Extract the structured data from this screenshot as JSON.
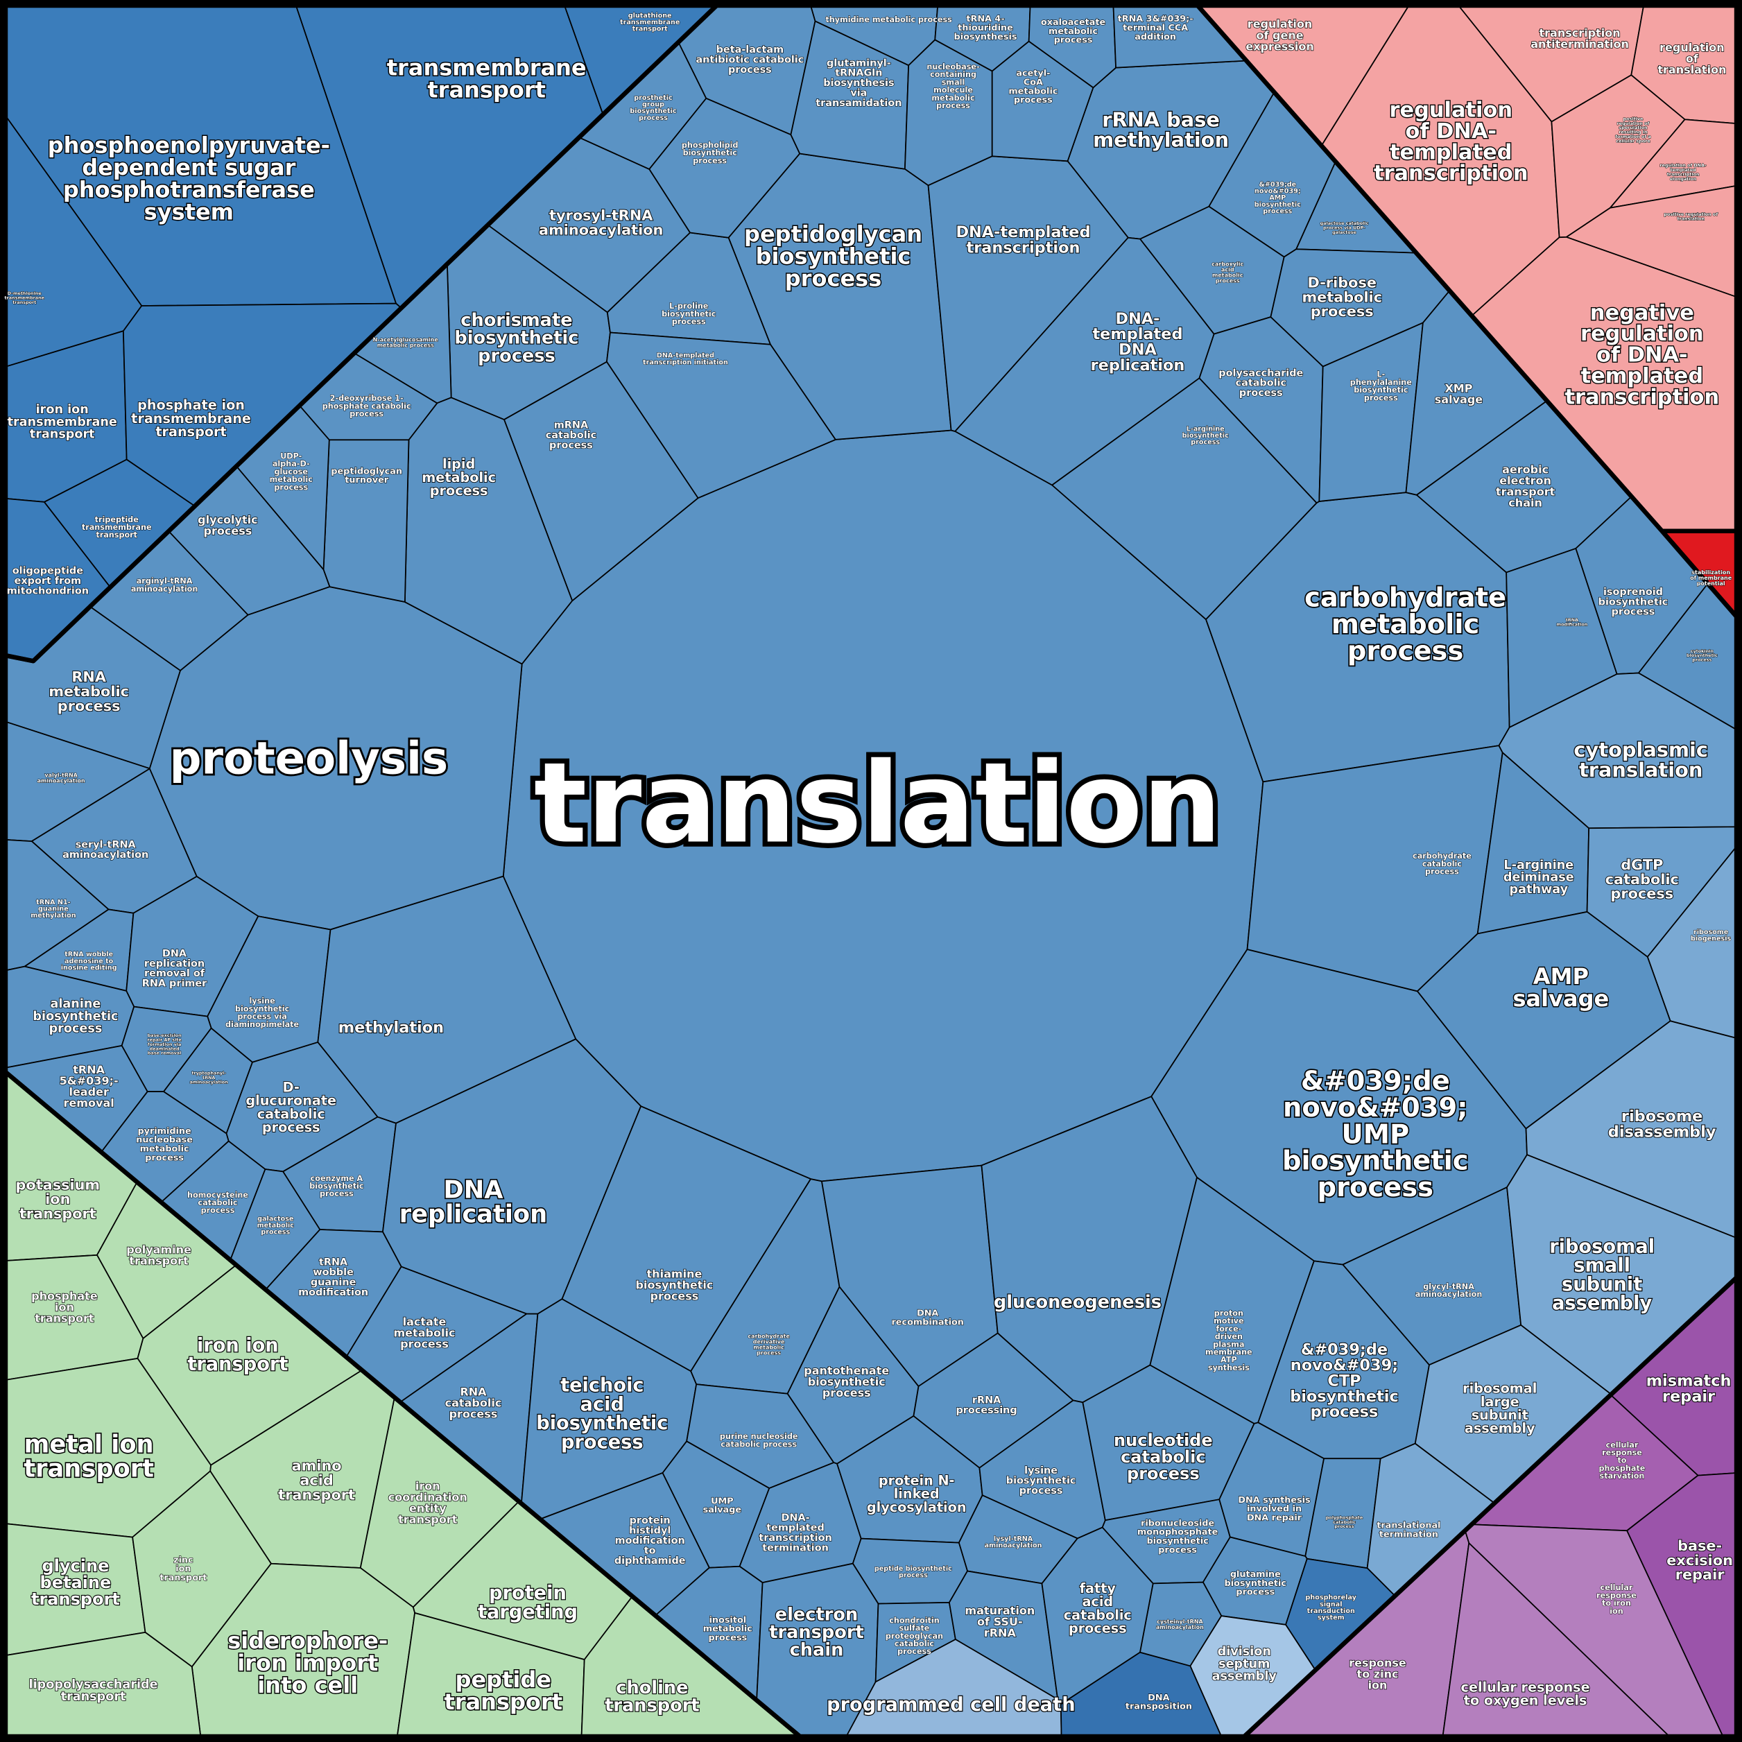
{
  "groups": [
    {
      "color": "#3b7dbb",
      "cells": [
        {
          "label": "transmembrane transport"
        },
        {
          "label": "phosphoenolpyruvate-dependent sugar phosphotransferase system"
        },
        {
          "label": "glutathione transmembrane transport"
        },
        {
          "label": "D-methionine transmembrane transport"
        },
        {
          "label": "iron ion transmembrane transport"
        },
        {
          "label": "phosphate ion transmembrane transport"
        },
        {
          "label": "tripeptide transmembrane transport"
        },
        {
          "label": "oligopeptide export from mitochondrion"
        }
      ]
    },
    {
      "color": "#5b93c4",
      "cells": [
        {
          "label": "translation"
        },
        {
          "label": "proteolysis"
        },
        {
          "label": "carbohydrate metabolic process"
        },
        {
          "label": "&#039;de novo&#039; UMP biosynthetic process"
        },
        {
          "label": "peptidoglycan biosynthetic process"
        },
        {
          "label": "rRNA base methylation"
        },
        {
          "label": "DNA-templated transcription"
        },
        {
          "label": "DNA-templated DNA replication"
        },
        {
          "label": "tyrosyl-tRNA aminoacylation"
        },
        {
          "label": "chorismate biosynthetic process"
        },
        {
          "label": "N-acetylglucosamine metabolic process"
        },
        {
          "label": "L-proline biosynthetic process"
        },
        {
          "label": "DNA-templated transcription initiation"
        },
        {
          "label": "beta-lactam antibiotic catabolic process"
        },
        {
          "label": "prosthetic group biosynthetic process"
        },
        {
          "label": "phospholipid biosynthetic process"
        },
        {
          "label": "glutaminyl-tRNAGln biosynthesis via transamidation"
        },
        {
          "label": "thymidine metabolic process"
        },
        {
          "label": "tRNA 4-thiouridine biosynthesis"
        },
        {
          "label": "oxaloacetate metabolic process"
        },
        {
          "label": "tRNA 3&#039;-terminal CCA addition"
        },
        {
          "label": "nucleobase-containing small molecule metabolic process"
        },
        {
          "label": "acetyl-CoA metabolic process"
        },
        {
          "label": "&#039;de novo&#039; AMP biosynthetic process"
        },
        {
          "label": "galactose catabolic process via UDP-galactose"
        },
        {
          "label": "carboxylic acid metabolic process"
        },
        {
          "label": "D-ribose metabolic process"
        },
        {
          "label": "polysaccharide catabolic process"
        },
        {
          "label": "L-phenylalanine biosynthetic process"
        },
        {
          "label": "XMP salvage"
        },
        {
          "label": "L-arginine biosynthetic process"
        },
        {
          "label": "mRNA catabolic process"
        },
        {
          "label": "lipid metabolic process"
        },
        {
          "label": "peptidoglycan turnover"
        },
        {
          "label": "2-deoxyribose 1-phosphate catabolic process"
        },
        {
          "label": "UDP-alpha-D-glucose metabolic process"
        },
        {
          "label": "glycolytic process"
        },
        {
          "label": "arginyl-tRNA aminoacylation"
        },
        {
          "label": "RNA metabolic process"
        },
        {
          "label": "valyl-tRNA aminoacylation"
        },
        {
          "label": "seryl-tRNA aminoacylation"
        },
        {
          "label": "tRNA N1-guanine methylation"
        },
        {
          "label": "tRNA wobble adenosine to inosine editing"
        },
        {
          "label": "DNA replication removal of RNA primer"
        },
        {
          "label": "alanine biosynthetic process"
        },
        {
          "label": "lysine biosynthetic process via diaminopimelate"
        },
        {
          "label": "methylation"
        },
        {
          "label": "base-excision repair AP site formation via deaminated base removal"
        },
        {
          "label": "tryptophanyl-tRNA aminoacylation"
        },
        {
          "label": "tRNA 5&#039;-leader removal"
        },
        {
          "label": "D-glucuronate catabolic process"
        },
        {
          "label": "pyrimidine nucleobase metabolic process"
        },
        {
          "label": "coenzyme A biosynthetic process"
        },
        {
          "label": "homocysteine catabolic process"
        },
        {
          "label": "galactose metabolic process"
        },
        {
          "label": "DNA replication"
        },
        {
          "label": "tRNA wobble guanine modification"
        },
        {
          "label": "lactate metabolic process"
        },
        {
          "label": "RNA catabolic process"
        },
        {
          "label": "teichoic acid biosynthetic process"
        },
        {
          "label": "thiamine biosynthetic process"
        },
        {
          "label": "carbohydrate derivative metabolic process"
        },
        {
          "label": "pantothenate biosynthetic process"
        },
        {
          "label": "DNA recombination"
        },
        {
          "label": "gluconeogenesis"
        },
        {
          "label": "rRNA processing"
        },
        {
          "label": "proton motive force-driven plasma membrane ATP synthesis"
        },
        {
          "label": "&#039;de novo&#039; CTP biosynthetic process"
        },
        {
          "label": "glycyl-tRNA aminoacylation"
        },
        {
          "label": "purine nucleoside catabolic process"
        },
        {
          "label": "UMP salvage"
        },
        {
          "label": "protein histidyl modification to diphthamide"
        },
        {
          "label": "DNA-templated transcription termination"
        },
        {
          "label": "protein N-linked glycosylation"
        },
        {
          "label": "lysine biosynthetic process"
        },
        {
          "label": "nucleotide catabolic process"
        },
        {
          "label": "ribonucleoside monophosphate biosynthetic process"
        },
        {
          "label": "DNA synthesis involved in DNA repair"
        },
        {
          "label": "polyphosphate catabolic process"
        },
        {
          "label": "lysyl-tRNA aminoacylation"
        },
        {
          "label": "peptide biosynthetic process"
        },
        {
          "label": "glutamine biosynthetic process"
        },
        {
          "label": "cysteinyl-tRNA aminoacylation"
        },
        {
          "label": "inositol metabolic process"
        },
        {
          "label": "electron transport chain"
        },
        {
          "label": "chondroitin sulfate proteoglycan catabolic process"
        },
        {
          "label": "maturation of SSU-rRNA"
        },
        {
          "label": "fatty acid catabolic process"
        },
        {
          "label": "aerobic electron transport chain"
        },
        {
          "label": "tRNA modification"
        },
        {
          "label": "isoprenoid biosynthetic process"
        },
        {
          "label": "cytokinin biosynthetic process"
        },
        {
          "label": "carbohydrate catabolic process"
        },
        {
          "label": "L-arginine deiminase pathway"
        },
        {
          "label": "cytoplasmic translation",
          "color": "#6b9fcd"
        },
        {
          "label": "dGTP catabolic process",
          "color": "#6b9fcd"
        },
        {
          "label": "ribosome biogenesis",
          "color": "#7aa9d3"
        },
        {
          "label": "AMP salvage"
        },
        {
          "label": "ribosome disassembly",
          "color": "#7aa9d3"
        },
        {
          "label": "ribosomal small subunit assembly",
          "color": "#7aa9d3"
        },
        {
          "label": "ribosomal large subunit assembly",
          "color": "#7aa9d3"
        },
        {
          "label": "translational termination",
          "color": "#7aa9d3"
        },
        {
          "label": "phosphorelay signal transduction system",
          "color": "#3a78b5"
        },
        {
          "label": "division septum assembly",
          "color": "#a5c6e6"
        },
        {
          "label": "programmed cell death",
          "color": "#92b7dc"
        },
        {
          "label": "DNA transposition",
          "color": "#3572b0"
        }
      ]
    },
    {
      "color": "#f4a3a3",
      "cells": [
        {
          "label": "regulation of gene expression"
        },
        {
          "label": "transcription antitermination"
        },
        {
          "label": "regulation of translation"
        },
        {
          "label": "regulation of DNA-templated transcription"
        },
        {
          "label": "positive regulation of sporulation resulting in formation of a cellular spore"
        },
        {
          "label": "regulation of DNA-templated transcription elongation"
        },
        {
          "label": "positive regulation of translation"
        },
        {
          "label": "negative regulation of DNA-templated transcription"
        }
      ]
    },
    {
      "color": "#e0191f",
      "cells": [
        {
          "label": "stabilization of membrane potential"
        }
      ]
    },
    {
      "color": "#b47fbe",
      "cells": [
        {
          "label": "mismatch repair",
          "color": "#9b54aa"
        },
        {
          "label": "cellular response to phosphate starvation",
          "color": "#a560b0"
        },
        {
          "label": "base-excision repair",
          "color": "#9b54aa"
        },
        {
          "label": "cellular response to iron ion"
        },
        {
          "label": "response to zinc ion"
        },
        {
          "label": "cellular response to oxygen levels"
        }
      ]
    },
    {
      "color": "#b5dfb3",
      "cells": [
        {
          "label": "potassium ion transport"
        },
        {
          "label": "polyamine transport"
        },
        {
          "label": "phosphate ion transport"
        },
        {
          "label": "iron ion transport"
        },
        {
          "label": "metal ion transport"
        },
        {
          "label": "amino acid transport"
        },
        {
          "label": "iron coordination entity transport"
        },
        {
          "label": "glycine betaine transport"
        },
        {
          "label": "zinc ion transport"
        },
        {
          "label": "protein targeting"
        },
        {
          "label": "siderophore-iron import into cell"
        },
        {
          "label": "lipopolysaccharide transport"
        },
        {
          "label": "peptide transport"
        },
        {
          "label": "choline transport"
        }
      ]
    }
  ]
}
